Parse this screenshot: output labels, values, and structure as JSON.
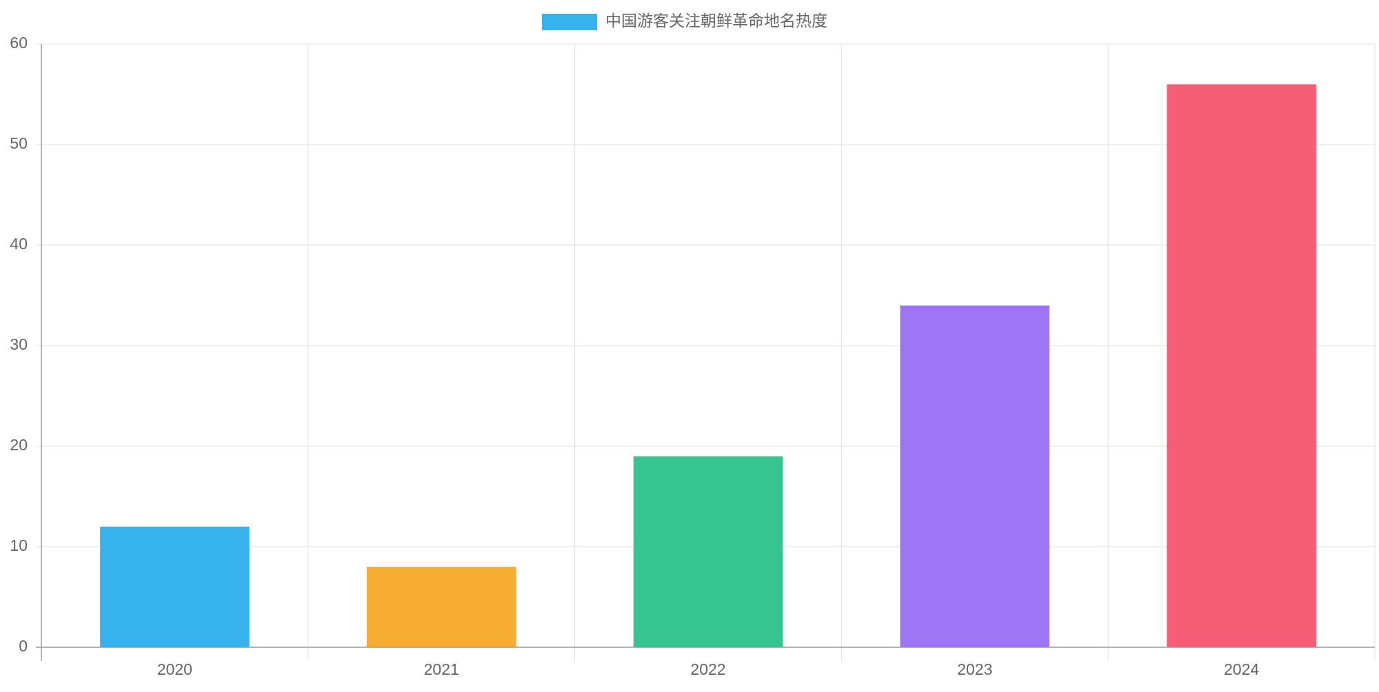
{
  "chart_data": {
    "type": "bar",
    "categories": [
      "2020",
      "2021",
      "2022",
      "2023",
      "2024"
    ],
    "series": [
      {
        "name": "中国游客关注朝鲜革命地名热度",
        "colors": [
          "#36b3ec",
          "#f7ad32",
          "#36c493",
          "#9d75f5",
          "#f65e77"
        ],
        "values": [
          12,
          8,
          19,
          34,
          56
        ]
      }
    ],
    "ylim": [
      0,
      60
    ],
    "yticks": [
      0,
      10,
      20,
      30,
      40,
      50,
      60
    ],
    "grid": true,
    "legend": "top"
  }
}
